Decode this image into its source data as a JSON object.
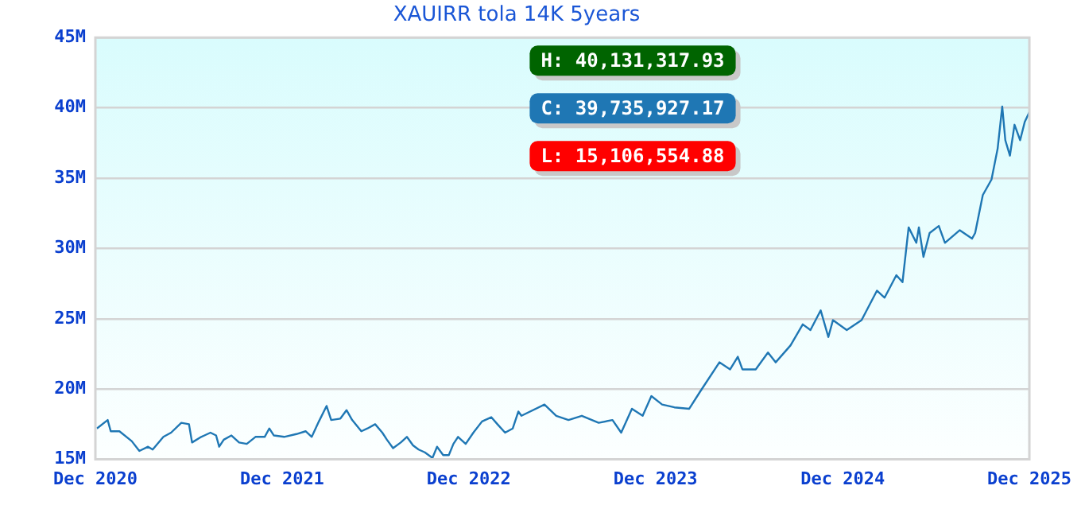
{
  "chart_data": {
    "type": "line",
    "title": "XAUIRR tola 14K 5years",
    "x": [
      "2020-12-04",
      "2020-12-25",
      "2020-12-31",
      "2021-01-17",
      "2021-02-10",
      "2021-02-25",
      "2021-03-14",
      "2021-03-23",
      "2021-04-13",
      "2021-04-28",
      "2021-05-18",
      "2021-06-02",
      "2021-06-08",
      "2021-06-26",
      "2021-07-14",
      "2021-07-25",
      "2021-07-31",
      "2021-08-09",
      "2021-08-24",
      "2021-09-08",
      "2021-09-23",
      "2021-10-10",
      "2021-10-28",
      "2021-11-06",
      "2021-11-15",
      "2021-12-05",
      "2021-12-29",
      "2022-01-16",
      "2022-01-28",
      "2022-02-11",
      "2022-02-26",
      "2022-03-07",
      "2022-03-25",
      "2022-04-06",
      "2022-04-17",
      "2022-05-05",
      "2022-05-17",
      "2022-06-01",
      "2022-06-15",
      "2022-06-24",
      "2022-07-06",
      "2022-07-21",
      "2022-08-02",
      "2022-08-14",
      "2022-08-25",
      "2022-09-06",
      "2022-09-21",
      "2022-09-30",
      "2022-10-12",
      "2022-10-23",
      "2022-11-01",
      "2022-11-10",
      "2022-11-25",
      "2022-12-10",
      "2022-12-27",
      "2023-01-14",
      "2023-01-26",
      "2023-02-10",
      "2023-02-25",
      "2023-03-08",
      "2023-03-14",
      "2023-04-28",
      "2023-05-21",
      "2023-06-14",
      "2023-07-10",
      "2023-08-12",
      "2023-09-08",
      "2023-09-25",
      "2023-10-16",
      "2023-11-06",
      "2023-11-23",
      "2023-12-14",
      "2024-01-07",
      "2024-02-05",
      "2024-02-26",
      "2024-04-04",
      "2024-04-25",
      "2024-05-10",
      "2024-05-19",
      "2024-06-14",
      "2024-07-08",
      "2024-07-23",
      "2024-08-21",
      "2024-09-14",
      "2024-09-29",
      "2024-10-19",
      "2024-11-03",
      "2024-11-12",
      "2024-12-09",
      "2025-01-07",
      "2025-02-06",
      "2025-02-21",
      "2025-03-16",
      "2025-03-28",
      "2025-04-09",
      "2025-04-24",
      "2025-04-29",
      "2025-05-08",
      "2025-05-20",
      "2025-06-07",
      "2025-06-19",
      "2025-07-18",
      "2025-08-11",
      "2025-08-17",
      "2025-09-01",
      "2025-09-18",
      "2025-09-30",
      "2025-10-09",
      "2025-10-15",
      "2025-10-24",
      "2025-11-02",
      "2025-11-13",
      "2025-11-22",
      "2025-12-01"
    ],
    "series": [
      {
        "color": "#1f77b4",
        "values": [
          17.2,
          17.8,
          17.0,
          17.0,
          16.3,
          15.6,
          15.9,
          15.7,
          16.6,
          16.9,
          17.6,
          17.5,
          16.2,
          16.6,
          16.9,
          16.7,
          15.9,
          16.4,
          16.7,
          16.2,
          16.1,
          16.6,
          16.6,
          17.2,
          16.7,
          16.6,
          16.8,
          17.0,
          16.6,
          17.7,
          18.8,
          17.8,
          17.9,
          18.5,
          17.8,
          17.0,
          17.2,
          17.5,
          16.9,
          16.4,
          15.8,
          16.2,
          16.6,
          16.0,
          15.7,
          15.5,
          15.1,
          15.9,
          15.3,
          15.3,
          16.1,
          16.6,
          16.1,
          16.9,
          17.7,
          18.0,
          17.5,
          16.9,
          17.2,
          18.4,
          18.1,
          18.9,
          18.1,
          17.8,
          18.1,
          17.6,
          17.8,
          16.9,
          18.6,
          18.1,
          19.5,
          18.9,
          18.7,
          18.6,
          19.8,
          21.9,
          21.4,
          22.3,
          21.4,
          21.4,
          22.6,
          21.9,
          23.1,
          24.6,
          24.2,
          25.6,
          23.7,
          24.9,
          24.2,
          24.9,
          27.0,
          26.5,
          28.1,
          27.6,
          31.5,
          30.4,
          31.5,
          29.4,
          31.1,
          31.6,
          30.4,
          31.3,
          30.7,
          31.1,
          33.8,
          34.9,
          37.1,
          40.1,
          37.7,
          36.6,
          38.8,
          37.7,
          39.0,
          39.7
        ]
      }
    ],
    "xlim": [
      "2020-12-01",
      "2025-12-01"
    ],
    "xticks": [
      {
        "value": "2020-12-01",
        "label": "Dec 2020"
      },
      {
        "value": "2021-12-01",
        "label": "Dec 2021"
      },
      {
        "value": "2022-12-01",
        "label": "Dec 2022"
      },
      {
        "value": "2023-12-01",
        "label": "Dec 2023"
      },
      {
        "value": "2024-12-01",
        "label": "Dec 2024"
      },
      {
        "value": "2025-12-01",
        "label": "Dec 2025"
      }
    ],
    "ylim": [
      15,
      45
    ],
    "yticks": [
      {
        "value": 15,
        "label": "15M"
      },
      {
        "value": 20,
        "label": "20M"
      },
      {
        "value": 25,
        "label": "25M"
      },
      {
        "value": 30,
        "label": "30M"
      },
      {
        "value": 35,
        "label": "35M"
      },
      {
        "value": 40,
        "label": "40M"
      },
      {
        "value": 45,
        "label": "45M"
      }
    ],
    "grid": "y",
    "legend": false,
    "marker": "none",
    "line_style": "solid",
    "annotations": [
      "H: 40,131,317.93",
      "C: 39,735,927.17",
      "L: 15,106,554.88"
    ]
  }
}
